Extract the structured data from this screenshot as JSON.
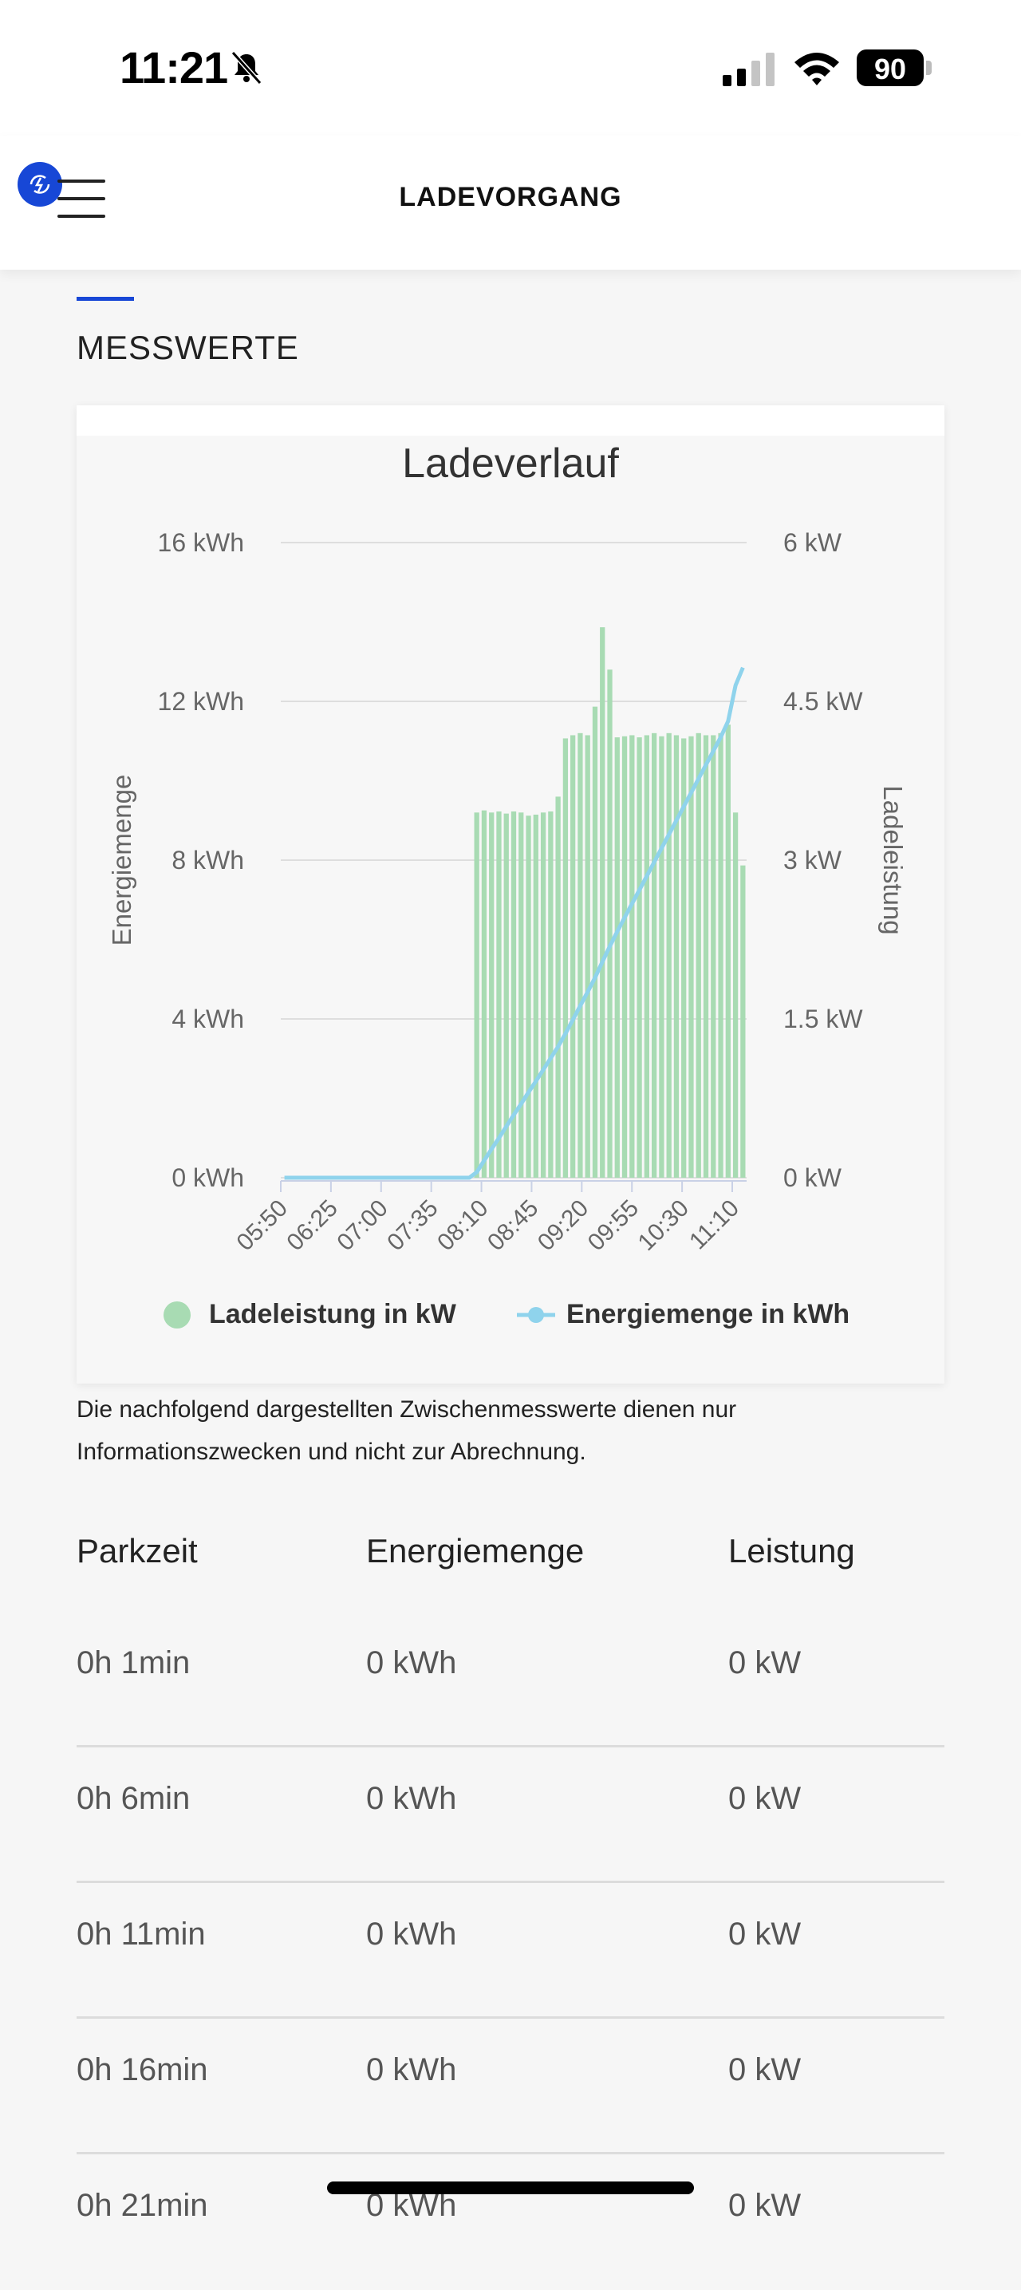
{
  "status_bar": {
    "time": "11:21",
    "battery": "90"
  },
  "header": {
    "title": "LADEVORGANG"
  },
  "section": {
    "title": "MESSWERTE"
  },
  "chart_data": {
    "type": "bar+line",
    "title": "Ladeverlauf",
    "y_left_label": "Energiemenge",
    "y_right_label": "Ladeleistung",
    "y_left_ticks": [
      "16 kWh",
      "12 kWh",
      "8 kWh",
      "4 kWh",
      "0 kWh"
    ],
    "y_right_ticks": [
      "6 kW",
      "4.5 kW",
      "3 kW",
      "1.5 kW",
      "0 kW"
    ],
    "y_left_range": [
      0,
      16
    ],
    "y_right_range": [
      0,
      6
    ],
    "x_tick_labels": [
      "05:50",
      "06:25",
      "07:00",
      "07:35",
      "08:10",
      "08:45",
      "09:20",
      "09:55",
      "10:30",
      "11:10"
    ],
    "grid": true,
    "legend_position": "bottom",
    "bar_color": "#a8dbb3",
    "line_color": "#8fd3ec",
    "series": [
      {
        "name": "Ladeleistung in kW",
        "kind": "bar",
        "axis": "right",
        "values": [
          0,
          0,
          0,
          0,
          0,
          0,
          0,
          0,
          0,
          0,
          0,
          0,
          0,
          0,
          0,
          0,
          0,
          0,
          0,
          0,
          0,
          0,
          0,
          0,
          0,
          0,
          3.45,
          3.47,
          3.45,
          3.46,
          3.44,
          3.46,
          3.45,
          3.42,
          3.43,
          3.45,
          3.46,
          3.6,
          4.15,
          4.18,
          4.2,
          4.18,
          4.45,
          5.2,
          4.8,
          4.16,
          4.17,
          4.18,
          4.16,
          4.18,
          4.2,
          4.17,
          4.2,
          4.18,
          4.15,
          4.17,
          4.2,
          4.18,
          4.18,
          4.2,
          4.28,
          3.45,
          2.95
        ]
      },
      {
        "name": "Energiemenge in kWh",
        "kind": "line",
        "axis": "left",
        "values": [
          0,
          0,
          0,
          0,
          0,
          0,
          0,
          0,
          0,
          0,
          0,
          0,
          0,
          0,
          0,
          0,
          0,
          0,
          0,
          0,
          0,
          0,
          0,
          0,
          0,
          0,
          0.14,
          0.43,
          0.72,
          1.0,
          1.29,
          1.58,
          1.86,
          2.15,
          2.43,
          2.72,
          3.01,
          3.3,
          3.63,
          3.98,
          4.33,
          4.68,
          5.04,
          5.44,
          5.83,
          6.2,
          6.55,
          6.9,
          7.25,
          7.6,
          7.95,
          8.3,
          8.65,
          9.0,
          9.35,
          9.7,
          10.05,
          10.4,
          10.75,
          11.1,
          11.5,
          12.4,
          12.85
        ]
      }
    ]
  },
  "info_text": "Die nachfolgend dargestellten Zwischenmesswerte dienen nur Informationszwecken und nicht zur Abrechnung.",
  "table": {
    "headers": [
      "Parkzeit",
      "Energiemenge",
      "Leistung"
    ],
    "rows": [
      [
        "0h 1min",
        "0 kWh",
        "0 kW"
      ],
      [
        "0h 6min",
        "0 kWh",
        "0 kW"
      ],
      [
        "0h 11min",
        "0 kWh",
        "0 kW"
      ],
      [
        "0h 16min",
        "0 kWh",
        "0 kW"
      ],
      [
        "0h 21min",
        "0 kWh",
        "0 kW"
      ]
    ]
  }
}
